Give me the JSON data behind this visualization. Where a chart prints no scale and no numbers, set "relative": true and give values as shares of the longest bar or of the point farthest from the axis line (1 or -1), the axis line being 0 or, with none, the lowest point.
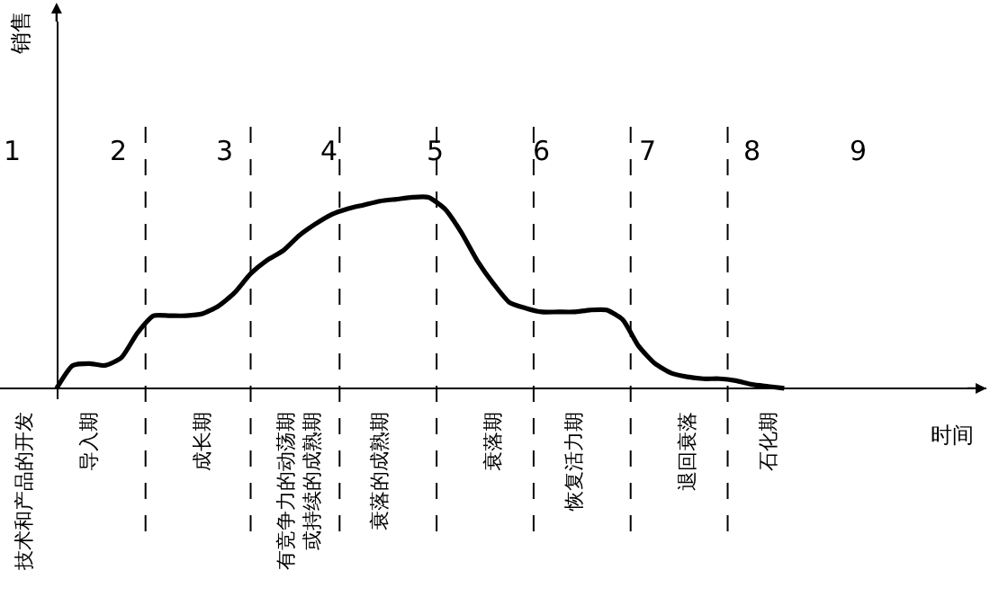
{
  "chart_data": {
    "type": "line",
    "relative": true,
    "xlabel": "时间",
    "categories": [
      null,
      "技术和产品的开发",
      null,
      null,
      null,
      "导入期",
      null,
      null,
      null,
      null,
      null,
      null,
      "成长期",
      null,
      null,
      null,
      null,
      null,
      "有竞争力的动荡期或持续的成熟期",
      null,
      null,
      null,
      null,
      "衰落的成熟期",
      null,
      null,
      null,
      null,
      null,
      null,
      "衰落期",
      null,
      null,
      null,
      null,
      "恢复活力期",
      null,
      null,
      null,
      null,
      null,
      null,
      "退回衰落",
      null,
      null,
      null,
      null,
      "石化期",
      null,
      null,
      null,
      null,
      null,
      null,
      null,
      null,
      null,
      null,
      null,
      null,
      null
    ],
    "tick_labels": "x",
    "grid": false,
    "marker": "none",
    "line_style": "solid",
    "series": [
      {
        "color": "#000000",
        "values": [
          null,
          null,
          null,
          0,
          0.12,
          0.13,
          0.12,
          0.16,
          0.29,
          0.38,
          0.38,
          0.38,
          0.39,
          0.43,
          0.5,
          0.6,
          0.67,
          0.72,
          0.8,
          0.86,
          0.91,
          0.94,
          0.96,
          0.98,
          0.99,
          1.0,
          1.0,
          0.94,
          0.82,
          0.67,
          0.55,
          0.45,
          0.42,
          0.4,
          0.4,
          0.4,
          0.41,
          0.41,
          0.36,
          0.22,
          0.13,
          0.08,
          0.06,
          0.05,
          0.05,
          0.04,
          0.02,
          0.01,
          0,
          null,
          null,
          null,
          null,
          null,
          null,
          null,
          null,
          null,
          null,
          null,
          null
        ]
      }
    ],
    "annotations": [
      "销售",
      "1",
      "2",
      "3",
      "4",
      "5",
      "6",
      "7",
      "8",
      "9"
    ]
  }
}
